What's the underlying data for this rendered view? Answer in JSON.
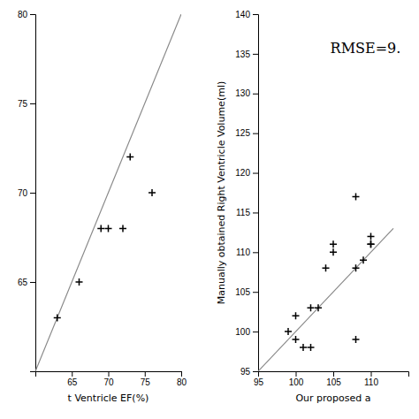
{
  "chart_data": [
    {
      "type": "scatter",
      "xlabel": "t Ventricle EF(%)",
      "xlim": [
        60,
        80
      ],
      "ylim": [
        60,
        80
      ],
      "xticks": [
        65,
        70,
        75,
        80
      ],
      "yticks": [
        65,
        70,
        75,
        80
      ],
      "series": [
        {
          "type": "line",
          "color": "#888888",
          "x": [
            60,
            80
          ],
          "values": [
            60,
            80
          ]
        },
        {
          "type": "scatter",
          "marker": "+",
          "color": "#000000",
          "x": [
            63,
            66,
            69,
            70,
            72,
            73,
            76
          ],
          "values": [
            63,
            65,
            68,
            68,
            68,
            72,
            70
          ]
        }
      ]
    },
    {
      "type": "scatter",
      "xlabel": "Our proposed a",
      "ylabel": "Manually obtained Right Ventricle Volume(ml)",
      "annotation": "RMSE=9.",
      "xlim": [
        95,
        115
      ],
      "ylim": [
        95,
        140
      ],
      "xticks": [
        95,
        100,
        105,
        110
      ],
      "yticks": [
        95,
        100,
        105,
        110,
        115,
        120,
        125,
        130,
        135,
        140
      ],
      "series": [
        {
          "type": "line",
          "color": "#888888",
          "x": [
            95,
            113
          ],
          "values": [
            95,
            113
          ]
        },
        {
          "type": "scatter",
          "marker": "+",
          "color": "#000000",
          "x": [
            99,
            100,
            100,
            101,
            102,
            102,
            103,
            104,
            105,
            105,
            108,
            108,
            108,
            109,
            110,
            110,
            110
          ],
          "values": [
            100,
            99,
            102,
            98,
            103,
            98,
            103,
            108,
            110,
            111,
            99,
            108,
            117,
            109,
            111,
            111,
            112
          ]
        }
      ]
    }
  ]
}
